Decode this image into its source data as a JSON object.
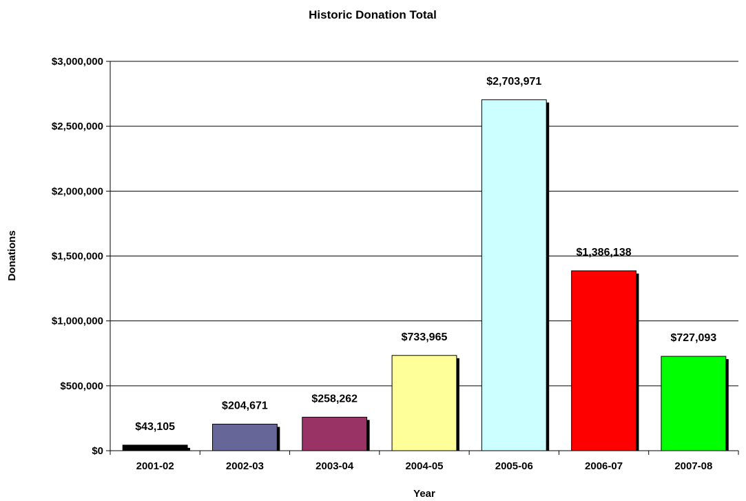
{
  "chart_data": {
    "type": "bar",
    "title": "Historic Donation Total",
    "xlabel": "Year",
    "ylabel": "Donations",
    "ylim": [
      0,
      3000000
    ],
    "ytick_step": 500000,
    "ytick_labels": [
      "$0",
      "$500,000",
      "$1,000,000",
      "$1,500,000",
      "$2,000,000",
      "$2,500,000",
      "$3,000,000"
    ],
    "grid": true,
    "legend": "none",
    "categories": [
      "2001-02",
      "2002-03",
      "2003-04",
      "2004-05",
      "2005-06",
      "2006-07",
      "2007-08"
    ],
    "values": [
      43105,
      204671,
      258262,
      733965,
      2703971,
      1386138,
      727093
    ],
    "value_labels": [
      "$43,105",
      "$204,671",
      "$258,262",
      "$733,965",
      "$2,703,971",
      "$1,386,138",
      "$727,093"
    ],
    "colors": [
      "#000000",
      "#666699",
      "#993366",
      "#FFFF99",
      "#CCFFFF",
      "#FF0000",
      "#00FF00"
    ]
  }
}
